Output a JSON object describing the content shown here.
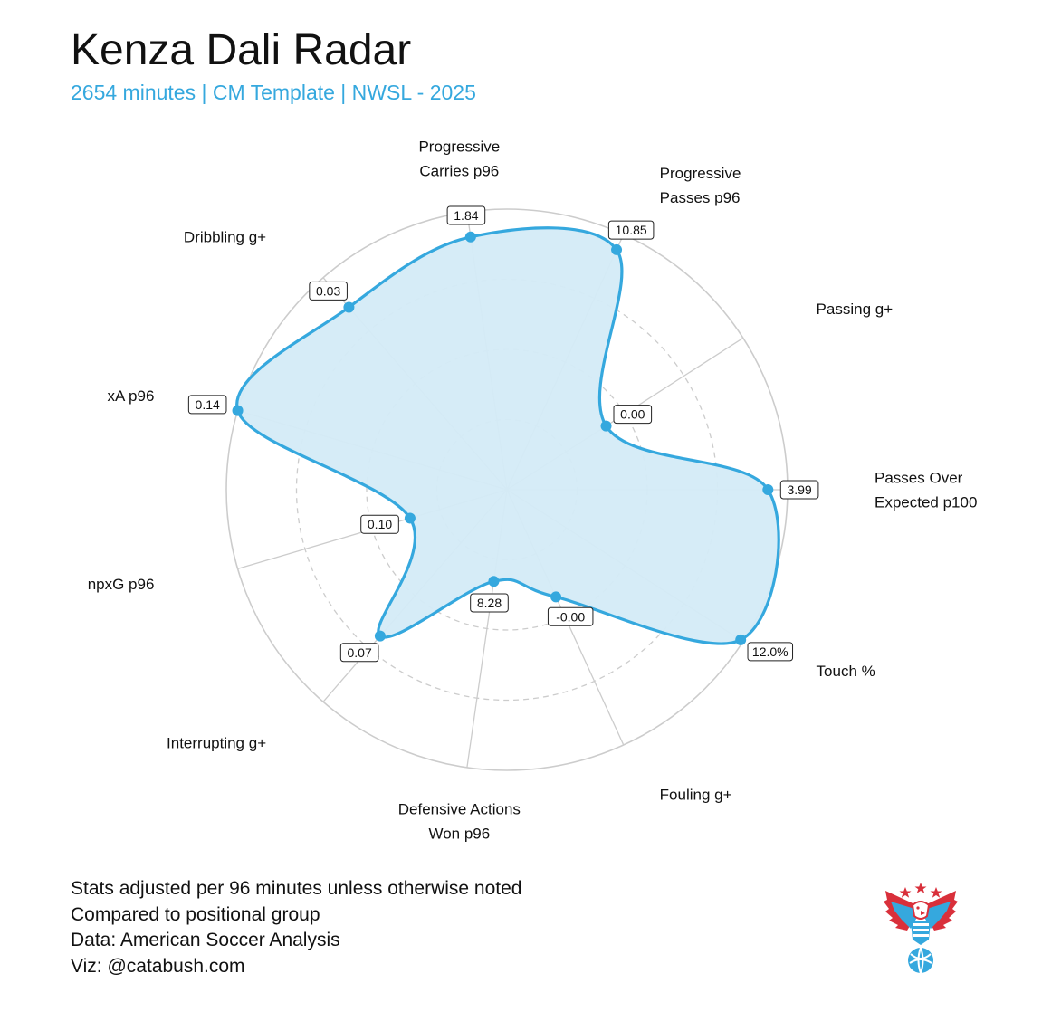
{
  "header": {
    "title": "Kenza Dali Radar",
    "subtitle": "2654 minutes | CM Template | NWSL - 2025"
  },
  "colors": {
    "accent": "#35a8de",
    "fill": "#d4ebf7",
    "grid": "#cccccc"
  },
  "chart_data": {
    "type": "radar",
    "title": "Kenza Dali Radar",
    "subtitle": "2654 minutes | CM Template | NWSL - 2025",
    "grid_rings": [
      0.25,
      0.5,
      0.75,
      1.0
    ],
    "scale": "percentile 0-1 within positional group",
    "axes": [
      {
        "label": "Passes Over Expected p100",
        "lines": [
          "Passes Over",
          "Expected p100"
        ],
        "value_label": "3.99",
        "r": 0.93
      },
      {
        "label": "Passing g+",
        "lines": [
          "Passing g+"
        ],
        "value_label": "0.00",
        "r": 0.42
      },
      {
        "label": "Progressive Passes p96",
        "lines": [
          "Progressive",
          "Passes p96"
        ],
        "value_label": "10.85",
        "r": 0.94
      },
      {
        "label": "Progressive Carries p96",
        "lines": [
          "Progressive",
          "Carries p96"
        ],
        "value_label": "1.84",
        "r": 0.91
      },
      {
        "label": "Dribbling g+",
        "lines": [
          "Dribbling g+"
        ],
        "value_label": "0.03",
        "r": 0.86
      },
      {
        "label": "xA p96",
        "lines": [
          "xA p96"
        ],
        "value_label": "0.14",
        "r": 1.0
      },
      {
        "label": "npxG p96",
        "lines": [
          "npxG p96"
        ],
        "value_label": "0.10",
        "r": 0.36
      },
      {
        "label": "Interrupting g+",
        "lines": [
          "Interrupting g+"
        ],
        "value_label": "0.07",
        "r": 0.69
      },
      {
        "label": "Defensive Actions Won p96",
        "lines": [
          "Defensive Actions",
          "Won p96"
        ],
        "value_label": "8.28",
        "r": 0.33
      },
      {
        "label": "Fouling g+",
        "lines": [
          "Fouling g+"
        ],
        "value_label": "-0.00",
        "r": 0.42
      },
      {
        "label": "Touch %",
        "lines": [
          "Touch %"
        ],
        "value_label": "12.0%",
        "r": 0.99
      }
    ]
  },
  "notes": {
    "line1": "Stats adjusted per 96 minutes unless otherwise noted",
    "line2": "Compared to positional group",
    "line3": "Data: American Soccer Analysis",
    "line4": "Viz: @catabush.com"
  },
  "logo": {
    "icon": "eagle-soccer-ball-logo",
    "colors": [
      "#d9303b",
      "#35a8de"
    ]
  }
}
